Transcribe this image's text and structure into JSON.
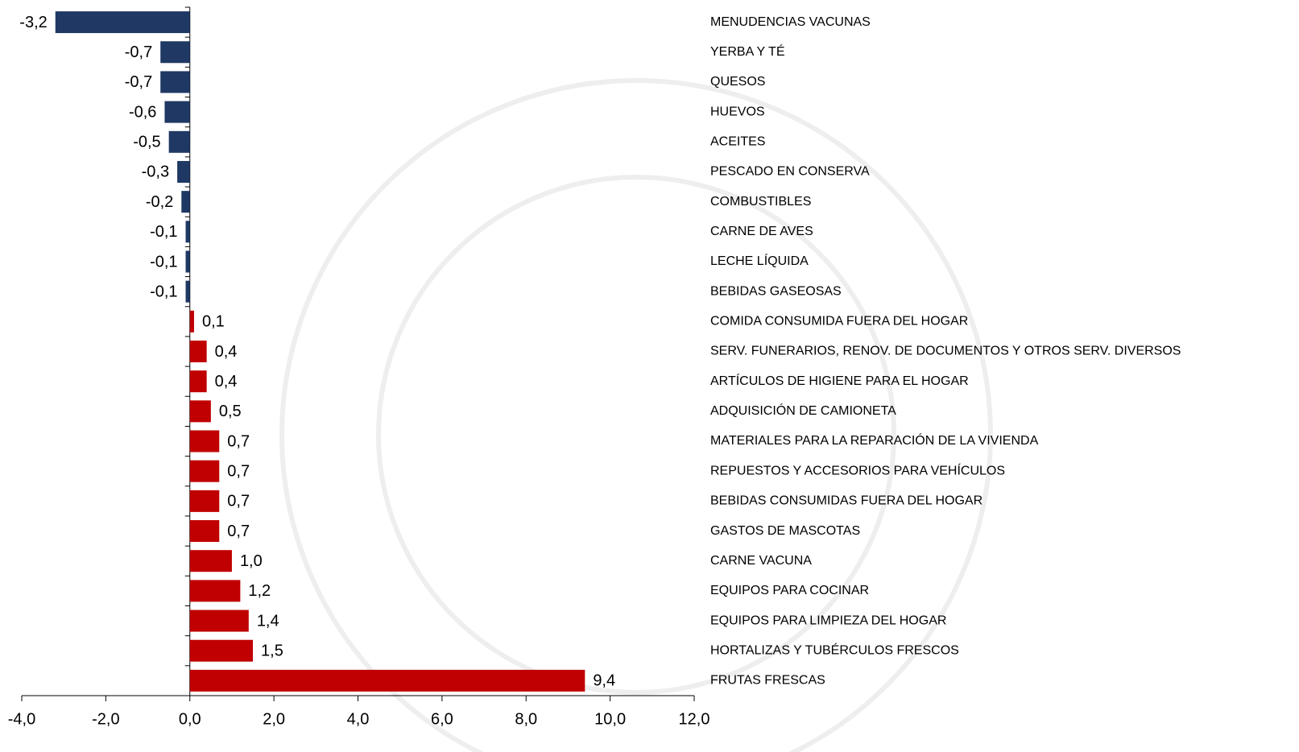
{
  "chart_data": {
    "type": "barh",
    "categories": [
      "MENUDENCIAS VACUNAS",
      "YERBA Y TÉ",
      "QUESOS",
      "HUEVOS",
      "ACEITES",
      "PESCADO EN CONSERVA",
      "COMBUSTIBLES",
      "CARNE DE AVES",
      "LECHE LÍQUIDA",
      "BEBIDAS GASEOSAS",
      "COMIDA CONSUMIDA FUERA DEL HOGAR",
      "SERV. FUNERARIOS, RENOV. DE DOCUMENTOS Y OTROS SERV. DIVERSOS",
      "ARTÍCULOS DE HIGIENE PARA EL HOGAR",
      "ADQUISICIÓN DE CAMIONETA",
      "MATERIALES PARA LA REPARACIÓN DE LA VIVIENDA",
      "REPUESTOS Y ACCESORIOS PARA VEHÍCULOS",
      "BEBIDAS CONSUMIDAS FUERA DEL HOGAR",
      "GASTOS DE MASCOTAS",
      "CARNE VACUNA",
      "EQUIPOS PARA COCINAR",
      "EQUIPOS PARA LIMPIEZA DEL HOGAR",
      "HORTALIZAS Y TUBÉRCULOS FRESCOS",
      "FRUTAS FRESCAS"
    ],
    "values": [
      -3.2,
      -0.7,
      -0.7,
      -0.6,
      -0.5,
      -0.3,
      -0.2,
      -0.1,
      -0.1,
      -0.1,
      0.1,
      0.4,
      0.4,
      0.5,
      0.7,
      0.7,
      0.7,
      0.7,
      1.0,
      1.2,
      1.4,
      1.5,
      9.4
    ],
    "value_labels": [
      "-3,2",
      "-0,7",
      "-0,7",
      "-0,6",
      "-0,5",
      "-0,3",
      "-0,2",
      "-0,1",
      "-0,1",
      "-0,1",
      "0,1",
      "0,4",
      "0,4",
      "0,5",
      "0,7",
      "0,7",
      "0,7",
      "0,7",
      "1,0",
      "1,2",
      "1,4",
      "1,5",
      "9,4"
    ],
    "color_negative": "#1f3864",
    "color_positive": "#c00000",
    "xlim": [
      -4,
      12
    ],
    "xticks": [
      {
        "value": -4,
        "label": "-4,0"
      },
      {
        "value": -2,
        "label": "-2,0"
      },
      {
        "value": 0,
        "label": "0,0"
      },
      {
        "value": 2,
        "label": "2,0"
      },
      {
        "value": 4,
        "label": "4,0"
      },
      {
        "value": 6,
        "label": "6,0"
      },
      {
        "value": 8,
        "label": "8,0"
      },
      {
        "value": 10,
        "label": "10,0"
      },
      {
        "value": 12,
        "label": "12,0"
      }
    ]
  }
}
